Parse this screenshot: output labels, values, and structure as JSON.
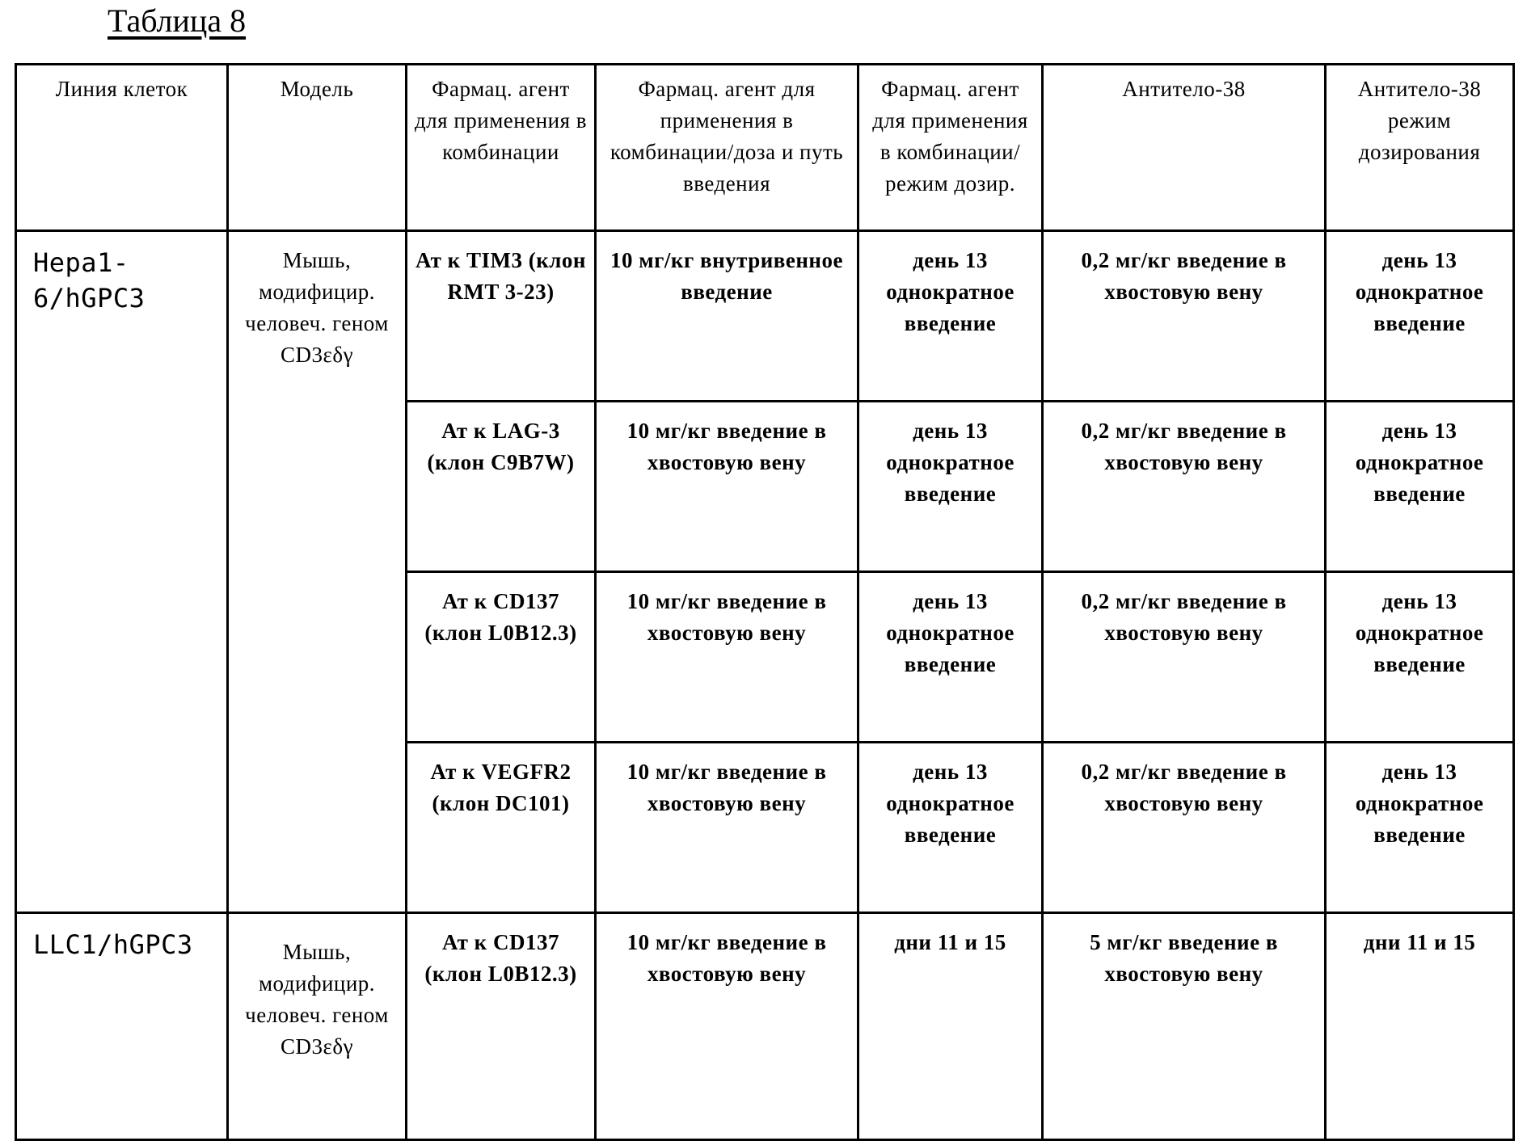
{
  "title": "Таблица 8",
  "headers": [
    "Линия клеток",
    "Модель",
    "Фармац. агент для применения в комбинации",
    "Фармац. агент для применения в комбинации/доза и путь введения",
    "Фармац. агент для применения в комбинации/ режим дозир.",
    "Антитело-38",
    "Антитело-38 режим дозирования"
  ],
  "groups": [
    {
      "cell_line": "Hepa1-6/hGPC3",
      "model": "Мышь, модифицир. человеч. геном CD3εδγ",
      "rows": [
        {
          "agent": "Ат к TIM3 (клон RMT 3-23)",
          "dose_route": "10 мг/кг внутривенное введение",
          "agent_regimen": "день 13 однократное введение",
          "ab38": "0,2 мг/кг введение в хвостовую вену",
          "ab38_regimen": "день 13 однократное введение"
        },
        {
          "agent": "Ат к LAG-3 (клон C9B7W)",
          "dose_route": "10 мг/кг введение в хвостовую вену",
          "agent_regimen": "день 13 однократное введение",
          "ab38": "0,2 мг/кг введение в хвостовую вену",
          "ab38_regimen": "день 13 однократное введение"
        },
        {
          "agent": "Ат к CD137 (клон L0B12.3)",
          "dose_route": "10 мг/кг введение в хвостовую вену",
          "agent_regimen": "день 13 однократное введение",
          "ab38": "0,2 мг/кг введение в хвостовую вену",
          "ab38_regimen": "день 13 однократное введение"
        },
        {
          "agent": "Ат к VEGFR2 (клон DC101)",
          "dose_route": "10 мг/кг введение в хвостовую вену",
          "agent_regimen": "день 13 однократное введение",
          "ab38": "0,2 мг/кг введение в хвостовую вену",
          "ab38_regimen": "день 13 однократное введение"
        }
      ]
    },
    {
      "cell_line": "LLC1/hGPC3",
      "model": "Мышь, модифицир. человеч. геном CD3εδγ",
      "rows": [
        {
          "agent": "Ат к CD137 (клон L0B12.3)",
          "dose_route": "10 мг/кг введение в хвостовую вену",
          "agent_regimen": "дни 11 и 15",
          "ab38": "5 мг/кг введение в хвостовую вену",
          "ab38_regimen": "дни 11 и 15"
        }
      ]
    }
  ]
}
